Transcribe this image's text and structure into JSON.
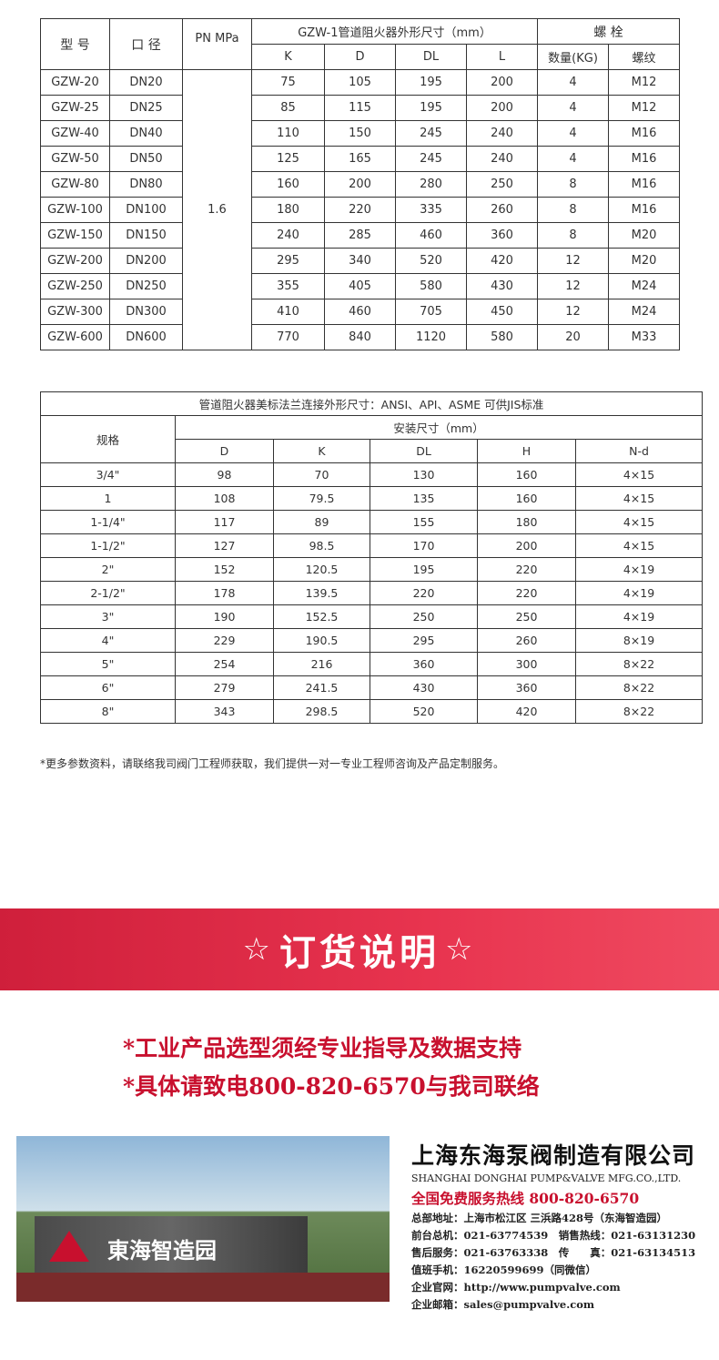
{
  "table1": {
    "headers": {
      "model": "型 号",
      "diameter": "口 径",
      "pn": "PN MPa",
      "dims": "GZW-1管道阻火器外形尺寸（mm）",
      "bolt": "螺 栓",
      "k": "K",
      "d": "D",
      "dl": "DL",
      "l": "L",
      "qty": "数量(KG)",
      "thread": "螺纹"
    },
    "pn_value": "1.6",
    "rows": [
      [
        "GZW-20",
        "DN20",
        "75",
        "105",
        "195",
        "200",
        "4",
        "M12"
      ],
      [
        "GZW-25",
        "DN25",
        "85",
        "115",
        "195",
        "200",
        "4",
        "M12"
      ],
      [
        "GZW-40",
        "DN40",
        "110",
        "150",
        "245",
        "240",
        "4",
        "M16"
      ],
      [
        "GZW-50",
        "DN50",
        "125",
        "165",
        "245",
        "240",
        "4",
        "M16"
      ],
      [
        "GZW-80",
        "DN80",
        "160",
        "200",
        "280",
        "250",
        "8",
        "M16"
      ],
      [
        "GZW-100",
        "DN100",
        "180",
        "220",
        "335",
        "260",
        "8",
        "M16"
      ],
      [
        "GZW-150",
        "DN150",
        "240",
        "285",
        "460",
        "360",
        "8",
        "M20"
      ],
      [
        "GZW-200",
        "DN200",
        "295",
        "340",
        "520",
        "420",
        "12",
        "M20"
      ],
      [
        "GZW-250",
        "DN250",
        "355",
        "405",
        "580",
        "430",
        "12",
        "M24"
      ],
      [
        "GZW-300",
        "DN300",
        "410",
        "460",
        "705",
        "450",
        "12",
        "M24"
      ],
      [
        "GZW-600",
        "DN600",
        "770",
        "840",
        "1120",
        "580",
        "20",
        "M33"
      ]
    ]
  },
  "table2": {
    "title": "管道阻火器美标法兰连接外形尺寸：ANSI、API、ASME 可供JIS标准",
    "spec": "规格",
    "install": "安装尺寸（mm）",
    "cols": [
      "D",
      "K",
      "DL",
      "H",
      "N-d"
    ],
    "rows": [
      [
        "3/4\"",
        "98",
        "70",
        "130",
        "160",
        "4×15"
      ],
      [
        "1",
        "108",
        "79.5",
        "135",
        "160",
        "4×15"
      ],
      [
        "1-1/4\"",
        "117",
        "89",
        "155",
        "180",
        "4×15"
      ],
      [
        "1-1/2\"",
        "127",
        "98.5",
        "170",
        "200",
        "4×15"
      ],
      [
        "2\"",
        "152",
        "120.5",
        "195",
        "220",
        "4×19"
      ],
      [
        "2-1/2\"",
        "178",
        "139.5",
        "220",
        "220",
        "4×19"
      ],
      [
        "3\"",
        "190",
        "152.5",
        "250",
        "250",
        "4×19"
      ],
      [
        "4\"",
        "229",
        "190.5",
        "295",
        "260",
        "8×19"
      ],
      [
        "5\"",
        "254",
        "216",
        "360",
        "300",
        "8×22"
      ],
      [
        "6\"",
        "279",
        "241.5",
        "430",
        "360",
        "8×22"
      ],
      [
        "8\"",
        "343",
        "298.5",
        "520",
        "420",
        "8×22"
      ]
    ]
  },
  "note": "*更多参数资料，请联络我司阀门工程师获取，我们提供一对一专业工程师咨询及产品定制服务。",
  "banner": {
    "star": "☆",
    "title": "订货说明",
    "color": "#e0304a"
  },
  "order_lines": [
    "*工业产品选型须经专业指导及数据支持",
    "*具体请致电800-820-6570与我司联络"
  ],
  "photo": {
    "sign": "東海智造园"
  },
  "company": {
    "name_cn": "上海东海泵阀制造有限公司",
    "name_en": "SHANGHAI DONGHAI PUMP&VALVE MFG.CO.,LTD.",
    "hotline": "全国免费服务热线 800-820-6570",
    "lines": [
      "总部地址：上海市松江区 三浜路428号（东海智造园）",
      "前台总机：021-63774539　销售热线：021-63131230",
      "售后服务：021-63763338　传　　真：021-63134513",
      "值班手机：16220599699（同微信）",
      "企业官网：http://www.pumpvalve.com",
      "企业邮箱：sales@pumpvalve.com"
    ]
  }
}
